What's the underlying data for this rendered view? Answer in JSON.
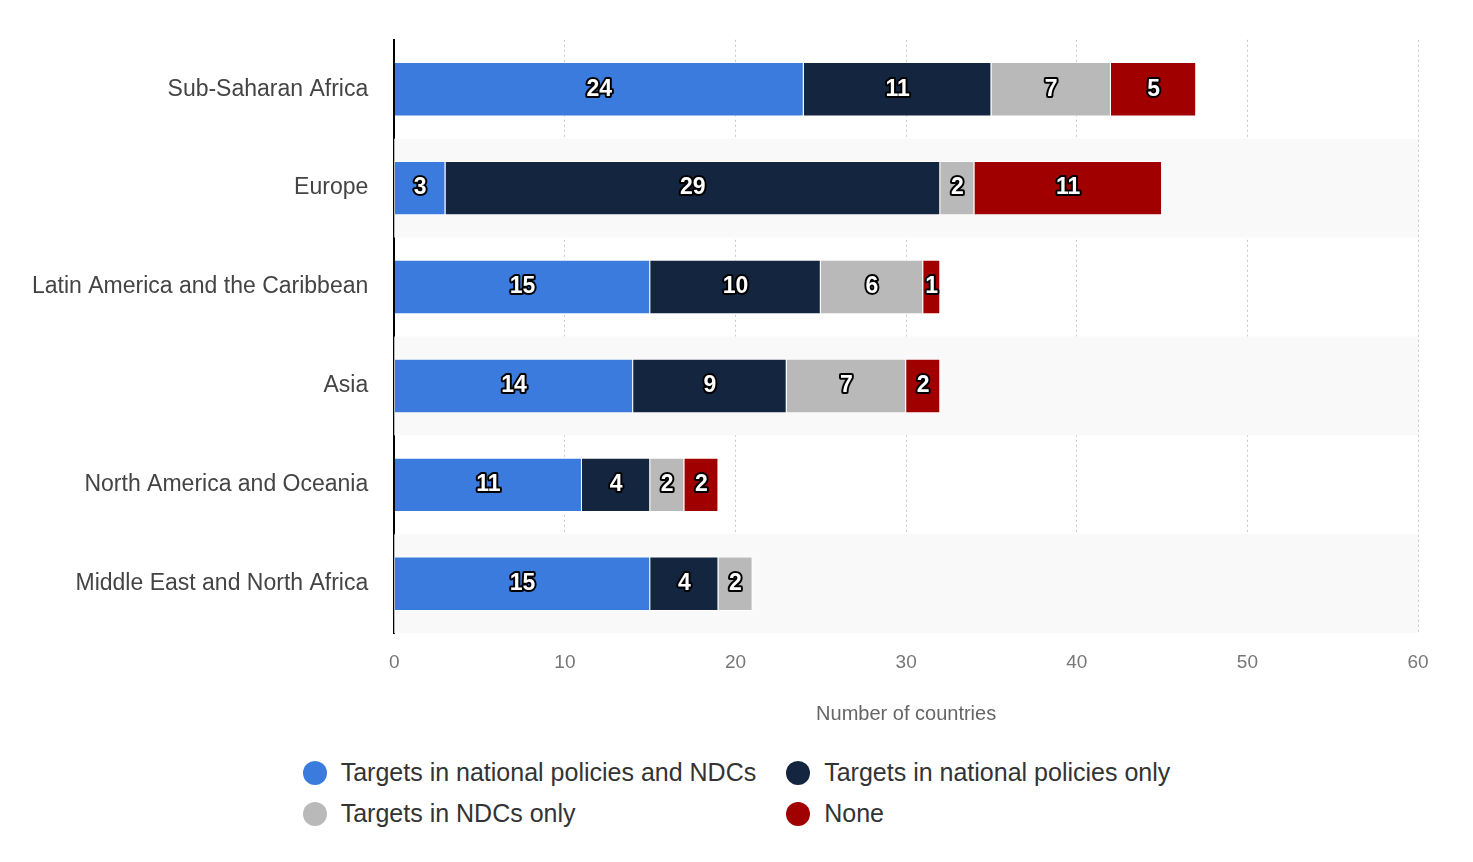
{
  "chart_data": {
    "type": "bar",
    "orientation": "horizontal",
    "stacked": true,
    "data_labels": true,
    "grid": true,
    "legend": "bottom",
    "x_label": "Number of countries",
    "categories": [
      "Sub-Saharan Africa",
      "Europe",
      "Latin America and the Caribbean",
      "Asia",
      "North America and Oceania",
      "Middle East and North Africa"
    ],
    "series": [
      {
        "name": "Targets in national policies and NDCs",
        "color": "#3a7bdd",
        "values": [
          24,
          3,
          15,
          14,
          11,
          15
        ]
      },
      {
        "name": "Targets in national policies only",
        "color": "#14263f",
        "values": [
          11,
          29,
          10,
          9,
          4,
          4
        ]
      },
      {
        "name": "Targets in NDCs only",
        "color": "#b9b9b9",
        "values": [
          7,
          2,
          6,
          7,
          2,
          2
        ]
      },
      {
        "name": "None",
        "color": "#a00000",
        "values": [
          5,
          11,
          1,
          2,
          2,
          0
        ]
      }
    ],
    "xlim": [
      0,
      60
    ],
    "xticks": [
      0,
      10,
      20,
      30,
      40,
      50,
      60
    ]
  }
}
